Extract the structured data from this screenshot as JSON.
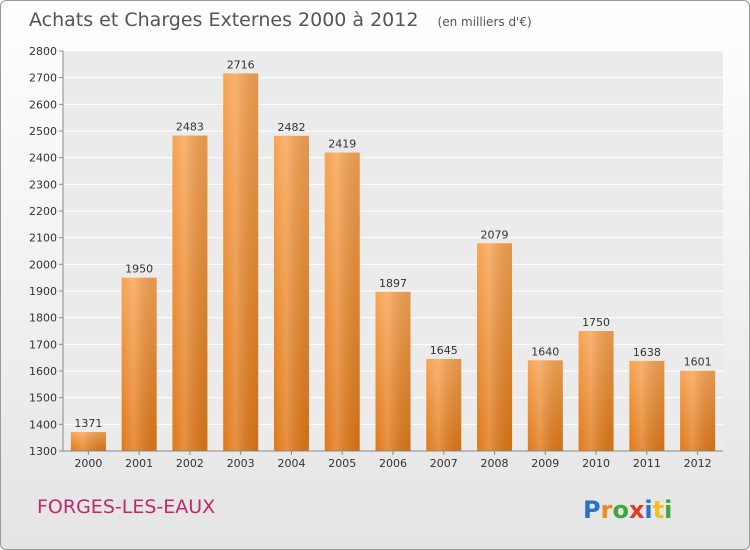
{
  "chart_data": {
    "type": "bar",
    "title": "Achats et Charges Externes 2000 à 2012",
    "subtitle": "(en milliers d'€)",
    "categories": [
      "2000",
      "2001",
      "2002",
      "2003",
      "2004",
      "2005",
      "2006",
      "2007",
      "2008",
      "2009",
      "2010",
      "2011",
      "2012"
    ],
    "values": [
      1371,
      1950,
      2483,
      2716,
      2482,
      2419,
      1897,
      1645,
      2079,
      1640,
      1750,
      1638,
      1601
    ],
    "ylim": [
      1300,
      2800
    ],
    "yticks": [
      1300,
      1400,
      1500,
      1600,
      1700,
      1800,
      1900,
      2000,
      2100,
      2200,
      2300,
      2400,
      2500,
      2600,
      2700,
      2800
    ],
    "grid": true,
    "bar_color": "#f0902e"
  },
  "place_name": "FORGES-LES-EAUX",
  "logo": {
    "letters": [
      "P",
      "r",
      "o",
      "x",
      "i",
      "t",
      "i"
    ],
    "colors": [
      "#2a72c8",
      "#f08a1c",
      "#3ea640",
      "#e03a2a",
      "#2a72c8",
      "#f0c21c",
      "#3ea640"
    ]
  }
}
